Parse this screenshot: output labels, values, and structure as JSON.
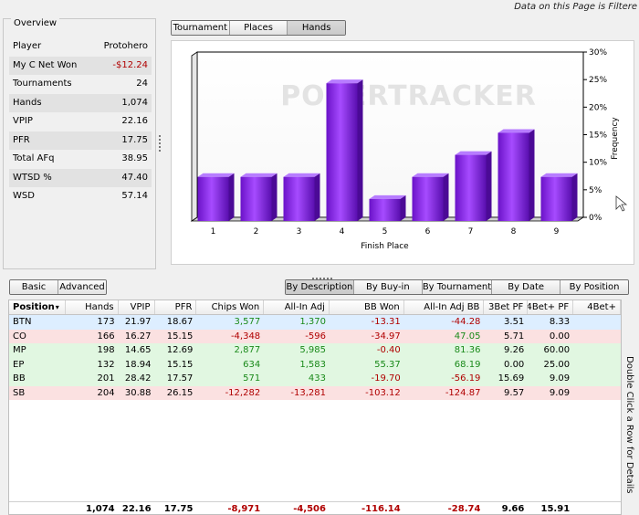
{
  "notice": "Data on this Page is Filtere",
  "overview": {
    "title": "Overview",
    "rows": [
      {
        "label": "Player",
        "value": "Protohero",
        "neg": false
      },
      {
        "label": "My C Net Won",
        "value": "-$12.24",
        "neg": true
      },
      {
        "label": "Tournaments",
        "value": "24",
        "neg": false
      },
      {
        "label": "Hands",
        "value": "1,074",
        "neg": false
      },
      {
        "label": "VPIP",
        "value": "22.16",
        "neg": false
      },
      {
        "label": "PFR",
        "value": "17.75",
        "neg": false
      },
      {
        "label": "Total AFq",
        "value": "38.95",
        "neg": false
      },
      {
        "label": "WTSD %",
        "value": "47.40",
        "neg": false
      },
      {
        "label": "WSD",
        "value": "57.14",
        "neg": false
      }
    ]
  },
  "chart_tabs": [
    {
      "label": "Tournament",
      "active": false
    },
    {
      "label": "Places",
      "active": false
    },
    {
      "label": "Hands",
      "active": true
    }
  ],
  "chart_data": {
    "type": "bar",
    "title": "",
    "watermark": "POKERTRACKER",
    "xlabel": "Finish Place",
    "ylabel": "Frequency",
    "categories": [
      "1",
      "2",
      "3",
      "4",
      "5",
      "6",
      "7",
      "8",
      "9"
    ],
    "values": [
      8,
      8,
      8,
      25,
      4,
      8,
      12,
      16,
      8
    ],
    "ylim": [
      0,
      30
    ],
    "yticks": [
      "0%",
      "5%",
      "10%",
      "15%",
      "20%",
      "25%",
      "30%"
    ],
    "ytick_values": [
      0,
      5,
      10,
      15,
      20,
      25,
      30
    ],
    "y_axis_side": "right",
    "grid": false,
    "bar_color": "#8a2be2"
  },
  "level_tabs": [
    {
      "label": "Basic",
      "active": false
    },
    {
      "label": "Advanced",
      "active": false
    }
  ],
  "sort_tabs": [
    {
      "label": "By Description",
      "active": true
    },
    {
      "label": "By Buy-in",
      "active": false
    },
    {
      "label": "By Tournament",
      "active": false
    },
    {
      "label": "By Date",
      "active": false
    },
    {
      "label": "By Position",
      "active": false
    }
  ],
  "grid": {
    "columns": [
      "Position",
      "Hands",
      "VPIP",
      "PFR",
      "Chips Won",
      "All-In Adj",
      "BB Won",
      "All-In Adj BB",
      "3Bet PF",
      "4Bet+ PF",
      "4Bet+"
    ],
    "sort_indicator": "▾",
    "rows": [
      {
        "bg": "#ddeeff",
        "cells": [
          "BTN",
          "173",
          "21.97",
          "18.67",
          "3,577",
          "1,370",
          "-13.31",
          "-44.28",
          "3.51",
          "8.33",
          ""
        ]
      },
      {
        "bg": "#fbe1e1",
        "cells": [
          "CO",
          "166",
          "16.27",
          "15.15",
          "-4,348",
          "-596",
          "-34.97",
          "47.05",
          "5.71",
          "0.00",
          ""
        ]
      },
      {
        "bg": "#e1f7e1",
        "cells": [
          "MP",
          "198",
          "14.65",
          "12.69",
          "2,877",
          "5,985",
          "-0.40",
          "81.36",
          "9.26",
          "60.00",
          ""
        ]
      },
      {
        "bg": "#e1f7e1",
        "cells": [
          "EP",
          "132",
          "18.94",
          "15.15",
          "634",
          "1,583",
          "55.37",
          "68.19",
          "0.00",
          "25.00",
          ""
        ]
      },
      {
        "bg": "#e1f7e1",
        "cells": [
          "BB",
          "201",
          "28.42",
          "17.57",
          "571",
          "433",
          "-19.70",
          "-56.19",
          "15.69",
          "9.09",
          ""
        ]
      },
      {
        "bg": "#fbe1e1",
        "cells": [
          "SB",
          "204",
          "30.88",
          "26.15",
          "-12,282",
          "-13,281",
          "-103.12",
          "-124.87",
          "9.57",
          "9.09",
          ""
        ]
      }
    ],
    "totals": [
      "",
      "1,074",
      "22.16",
      "17.75",
      "-8,971",
      "-4,506",
      "-116.14",
      "-28.74",
      "9.66",
      "15.91",
      ""
    ]
  },
  "side_hint": "Double Click a Row for Details",
  "colors": {
    "positive": "#1a8a1a",
    "negative": "#b00000"
  }
}
